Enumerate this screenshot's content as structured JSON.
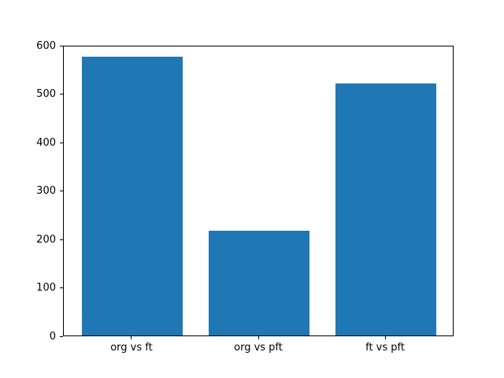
{
  "figure": {
    "background_color": "#ffffff",
    "plot_background_color": "#ffffff",
    "spine_color": "#000000",
    "tick_color": "#000000",
    "text_color": "#000000"
  },
  "chart_data": {
    "type": "bar",
    "categories": [
      "org vs ft",
      "org vs pft",
      "ft vs pft"
    ],
    "values": [
      575,
      216,
      520
    ],
    "title": "",
    "xlabel": "",
    "ylabel": "",
    "ylim": [
      0,
      600
    ],
    "yticks": [
      0,
      100,
      200,
      300,
      400,
      500,
      600
    ],
    "bar_color": "#1f77b4",
    "bar_width_fraction": 0.8,
    "grid": false,
    "legend": null
  }
}
